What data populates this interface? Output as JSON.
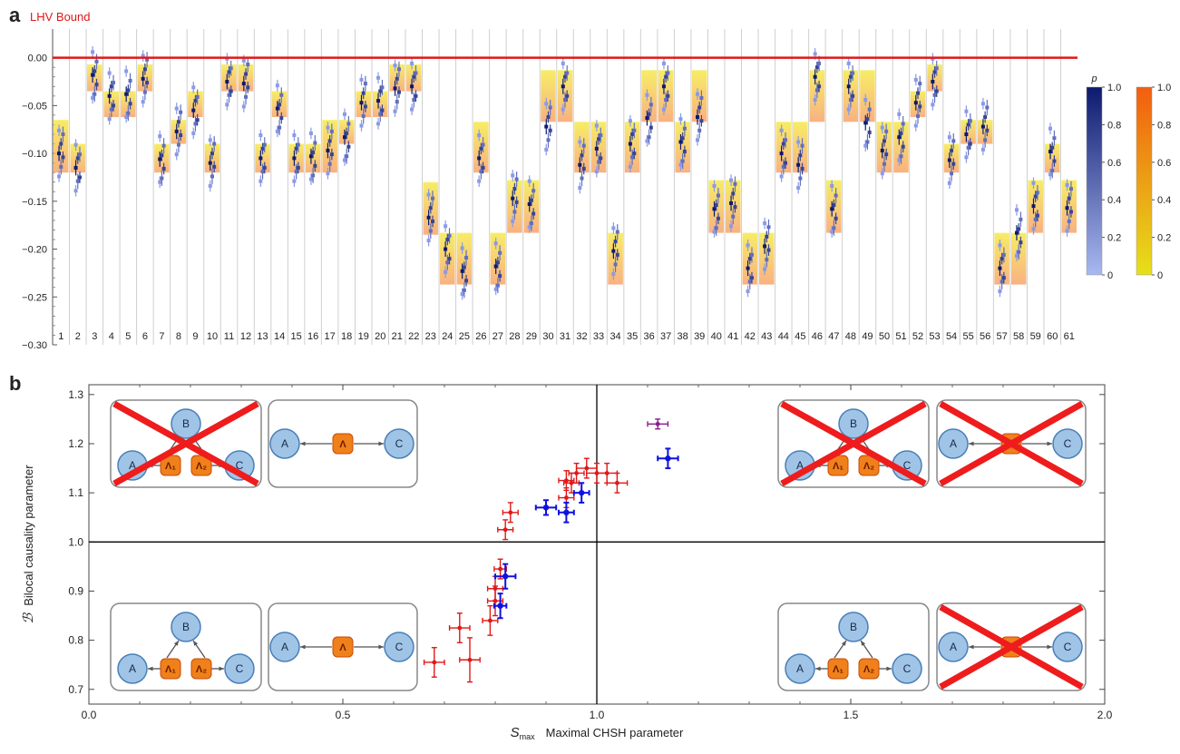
{
  "panel_a": {
    "letter": "a",
    "bound_label": "LHV Bound",
    "p_label": "p",
    "colors": {
      "bound": "#e01818",
      "point_dark": "#0c1a6e",
      "point_light": "#8a9ae6",
      "band_top": "#f5e840",
      "band_bottom": "#f79e62"
    }
  },
  "panel_b": {
    "letter": "b",
    "colors": {
      "red": "#e01818",
      "blue": "#1010e0",
      "purple": "#8a1c8a",
      "node": "#9fc4e6",
      "source": "#f0801a",
      "cross": "#ee1c1c"
    }
  },
  "chart_data": [
    {
      "type": "scatter",
      "ylim": [
        -0.3,
        0.03
      ],
      "y_ticks": [
        "0.00",
        "−0.05",
        "−0.10",
        "−0.15",
        "−0.20",
        "−0.25",
        "−0.30"
      ],
      "bound_y": 0,
      "categories": [
        "1",
        "2",
        "3",
        "4",
        "5",
        "6",
        "7",
        "8",
        "9",
        "10",
        "11",
        "12",
        "13",
        "14",
        "15",
        "16",
        "17",
        "18",
        "19",
        "20",
        "21",
        "22",
        "23",
        "24",
        "25",
        "26",
        "27",
        "28",
        "29",
        "30",
        "31",
        "32",
        "33",
        "34",
        "35",
        "36",
        "37",
        "38",
        "39",
        "40",
        "41",
        "42",
        "43",
        "44",
        "45",
        "46",
        "47",
        "48",
        "49",
        "50",
        "51",
        "52",
        "53",
        "54",
        "55",
        "56",
        "57",
        "58",
        "59",
        "60",
        "61"
      ],
      "bands": [
        [
          -0.065,
          -0.12
        ],
        [
          -0.09,
          -0.12
        ],
        [
          -0.007,
          -0.035
        ],
        [
          -0.035,
          -0.062
        ],
        [
          -0.035,
          -0.062
        ],
        [
          -0.007,
          -0.035
        ],
        [
          -0.09,
          -0.12
        ],
        [
          -0.065,
          -0.09
        ],
        [
          -0.035,
          -0.062
        ],
        [
          -0.09,
          -0.12
        ],
        [
          -0.007,
          -0.035
        ],
        [
          -0.007,
          -0.035
        ],
        [
          -0.09,
          -0.12
        ],
        [
          -0.035,
          -0.062
        ],
        [
          -0.09,
          -0.12
        ],
        [
          -0.09,
          -0.12
        ],
        [
          -0.065,
          -0.12
        ],
        [
          -0.065,
          -0.09
        ],
        [
          -0.035,
          -0.062
        ],
        [
          -0.035,
          -0.062
        ],
        [
          -0.007,
          -0.035
        ],
        [
          -0.007,
          -0.035
        ],
        [
          -0.13,
          -0.185
        ],
        [
          -0.183,
          -0.237
        ],
        [
          -0.183,
          -0.237
        ],
        [
          -0.067,
          -0.12
        ],
        [
          -0.183,
          -0.237
        ],
        [
          -0.128,
          -0.183
        ],
        [
          -0.128,
          -0.183
        ],
        [
          -0.013,
          -0.067
        ],
        [
          -0.013,
          -0.067
        ],
        [
          -0.067,
          -0.12
        ],
        [
          -0.067,
          -0.12
        ],
        [
          -0.183,
          -0.237
        ],
        [
          -0.067,
          -0.12
        ],
        [
          -0.013,
          -0.067
        ],
        [
          -0.013,
          -0.067
        ],
        [
          -0.067,
          -0.12
        ],
        [
          -0.013,
          -0.067
        ],
        [
          -0.128,
          -0.183
        ],
        [
          -0.128,
          -0.183
        ],
        [
          -0.183,
          -0.237
        ],
        [
          -0.183,
          -0.237
        ],
        [
          -0.067,
          -0.12
        ],
        [
          -0.067,
          -0.12
        ],
        [
          -0.013,
          -0.067
        ],
        [
          -0.128,
          -0.183
        ],
        [
          -0.013,
          -0.067
        ],
        [
          -0.013,
          -0.067
        ],
        [
          -0.067,
          -0.12
        ],
        [
          -0.067,
          -0.12
        ],
        [
          -0.035,
          -0.062
        ],
        [
          -0.007,
          -0.035
        ],
        [
          -0.09,
          -0.12
        ],
        [
          -0.065,
          -0.09
        ],
        [
          -0.065,
          -0.09
        ],
        [
          -0.183,
          -0.237
        ],
        [
          -0.183,
          -0.237
        ],
        [
          -0.128,
          -0.183
        ],
        [
          -0.09,
          -0.12
        ],
        [
          -0.128,
          -0.183
        ]
      ],
      "points": [
        -0.098,
        -0.115,
        -0.02,
        -0.04,
        -0.04,
        -0.02,
        -0.108,
        -0.075,
        -0.055,
        -0.108,
        -0.025,
        -0.025,
        -0.105,
        -0.055,
        -0.105,
        -0.105,
        -0.095,
        -0.085,
        -0.045,
        -0.045,
        -0.03,
        -0.03,
        -0.165,
        -0.2,
        -0.225,
        -0.105,
        -0.22,
        -0.145,
        -0.155,
        -0.07,
        -0.03,
        -0.11,
        -0.095,
        -0.2,
        -0.09,
        -0.065,
        -0.03,
        -0.09,
        -0.06,
        -0.16,
        -0.15,
        -0.22,
        -0.195,
        -0.1,
        -0.11,
        -0.02,
        -0.16,
        -0.03,
        -0.07,
        -0.095,
        -0.085,
        -0.045,
        -0.025,
        -0.105,
        -0.08,
        -0.07,
        -0.22,
        -0.185,
        -0.155,
        -0.1,
        -0.155
      ],
      "color_scales": [
        {
          "label": "p",
          "ticks": [
            "1.0",
            "0.8",
            "0.6",
            "0.4",
            "0.2",
            "0"
          ],
          "from": "#0c1a6e",
          "to": "#a8b8f0"
        },
        {
          "label": "",
          "ticks": [
            "1.0",
            "0.8",
            "0.6",
            "0.4",
            "0.2",
            "0"
          ],
          "from": "#f25e10",
          "to": "#e6e01a"
        }
      ]
    },
    {
      "type": "scatter",
      "xlim": [
        0,
        2
      ],
      "ylim": [
        0.67,
        1.32
      ],
      "x_ticks": [
        "0.0",
        "0.5",
        "1.0",
        "1.5",
        "2.0"
      ],
      "y_ticks": [
        "0.7",
        "0.8",
        "0.9",
        "1.0",
        "1.1",
        "1.2",
        "1.3"
      ],
      "xlabel_symbol": "S",
      "xlabel_sub": "max",
      "xlabel": "Maximal CHSH parameter",
      "ylabel_symbol": "ℬ",
      "ylabel": "Bilocal causality parameter",
      "threshold_x": 1.0,
      "threshold_y": 1.0,
      "series": [
        {
          "color": "red",
          "points": [
            [
              0.68,
              0.755,
              0.02,
              0.03
            ],
            [
              0.73,
              0.825,
              0.02,
              0.03
            ],
            [
              0.75,
              0.76,
              0.02,
              0.045
            ],
            [
              0.79,
              0.84,
              0.015,
              0.03
            ],
            [
              0.8,
              0.88,
              0.015,
              0.03
            ],
            [
              0.8,
              0.905,
              0.015,
              0.025
            ],
            [
              0.81,
              0.945,
              0.012,
              0.02
            ],
            [
              0.82,
              1.025,
              0.015,
              0.02
            ],
            [
              0.83,
              1.06,
              0.015,
              0.02
            ],
            [
              0.94,
              1.09,
              0.015,
              0.02
            ],
            [
              0.94,
              1.125,
              0.015,
              0.02
            ],
            [
              0.95,
              1.12,
              0.015,
              0.02
            ],
            [
              0.96,
              1.14,
              0.015,
              0.02
            ],
            [
              0.98,
              1.15,
              0.02,
              0.02
            ],
            [
              1.0,
              1.14,
              0.02,
              0.02
            ],
            [
              1.02,
              1.14,
              0.02,
              0.02
            ],
            [
              1.04,
              1.12,
              0.02,
              0.02
            ]
          ]
        },
        {
          "color": "blue",
          "points": [
            [
              0.81,
              0.87,
              0.012,
              0.025
            ],
            [
              0.82,
              0.93,
              0.02,
              0.025
            ],
            [
              0.9,
              1.07,
              0.02,
              0.015
            ],
            [
              0.94,
              1.06,
              0.015,
              0.02
            ],
            [
              0.97,
              1.1,
              0.015,
              0.02
            ],
            [
              1.14,
              1.17,
              0.02,
              0.02
            ]
          ]
        },
        {
          "color": "purple",
          "points": [
            [
              1.12,
              1.24,
              0.02,
              0.01
            ]
          ]
        }
      ],
      "inset_labels": {
        "a": "A",
        "b": "B",
        "c": "C",
        "l": "Λ",
        "l1": "Λ₁",
        "l2": "Λ₂"
      }
    }
  ]
}
